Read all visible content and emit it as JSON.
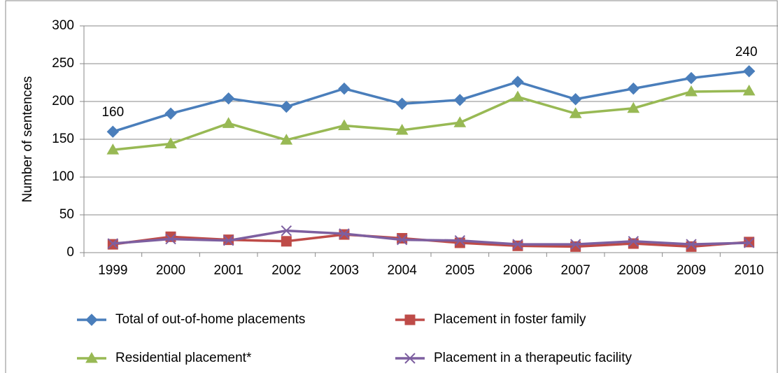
{
  "chart_data": {
    "type": "line",
    "y_label": "Number of sentences",
    "categories": [
      "1999",
      "2000",
      "2001",
      "2002",
      "2003",
      "2004",
      "2005",
      "2006",
      "2007",
      "2008",
      "2009",
      "2010"
    ],
    "series": [
      {
        "name": "Total of out-of-home placements",
        "color": "#4a7ebb",
        "marker": "diamond",
        "values": [
          160,
          184,
          204,
          193,
          217,
          197,
          202,
          226,
          203,
          217,
          231,
          240
        ]
      },
      {
        "name": "Placement in foster family",
        "color": "#be4b48",
        "marker": "square",
        "values": [
          11,
          21,
          17,
          15,
          24,
          19,
          13,
          9,
          8,
          12,
          8,
          14
        ]
      },
      {
        "name": "Residential placement*",
        "color": "#98b954",
        "marker": "triangle",
        "values": [
          136,
          144,
          171,
          149,
          168,
          162,
          172,
          206,
          184,
          191,
          213,
          214
        ]
      },
      {
        "name": "Placement in a therapeutic facility",
        "color": "#7d5fa0",
        "marker": "x",
        "values": [
          12,
          18,
          16,
          29,
          25,
          17,
          16,
          11,
          11,
          15,
          11,
          13
        ]
      }
    ],
    "ylim": [
      0,
      300
    ],
    "yticks": [
      0,
      50,
      100,
      150,
      200,
      250,
      300
    ],
    "grid": true
  }
}
